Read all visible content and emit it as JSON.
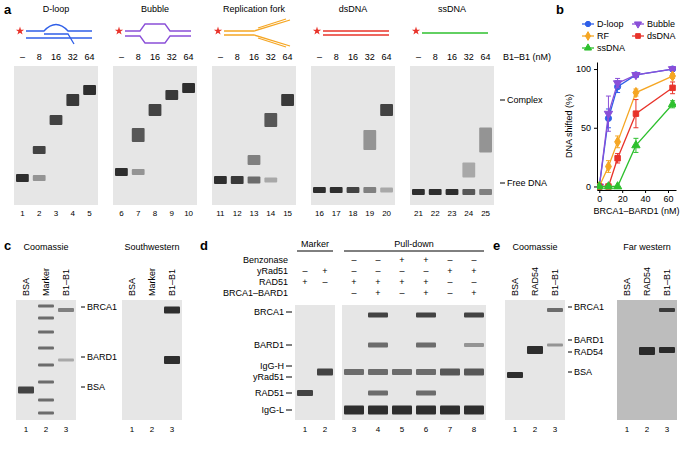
{
  "panels": {
    "a": {
      "letter": "a",
      "gels": [
        {
          "title": "D-loop",
          "lanes": [
            "–",
            "8",
            "16",
            "32",
            "64"
          ],
          "lane_numbers": [
            1,
            2,
            3,
            4,
            5
          ]
        },
        {
          "title": "Bubble",
          "lanes": [
            "–",
            "8",
            "16",
            "32",
            "64"
          ],
          "lane_numbers": [
            6,
            7,
            8,
            9,
            10
          ]
        },
        {
          "title": "Replication fork",
          "lanes": [
            "–",
            "8",
            "16",
            "32",
            "64"
          ],
          "lane_numbers": [
            11,
            12,
            13,
            14,
            15
          ]
        },
        {
          "title": "dsDNA",
          "lanes": [
            "–",
            "8",
            "16",
            "32",
            "64"
          ],
          "lane_numbers": [
            16,
            17,
            18,
            19,
            20
          ]
        },
        {
          "title": "ssDNA",
          "lanes": [
            "–",
            "8",
            "16",
            "32",
            "64"
          ],
          "lane_numbers": [
            21,
            22,
            23,
            24,
            25
          ]
        }
      ],
      "lane_unit": "B1–B1 (nM)",
      "band_labels": [
        "Complex",
        "Free DNA"
      ]
    },
    "b": {
      "letter": "b"
    },
    "c": {
      "letter": "c",
      "lanes": [
        "BSA",
        "Marker",
        "B1–B1"
      ],
      "blots": [
        {
          "title": "Coomassie",
          "lane_numbers": [
            1,
            2,
            3
          ]
        },
        {
          "title": "Southwestern",
          "lane_numbers": [
            1,
            2,
            3
          ]
        }
      ],
      "band_labels": [
        "BRCA1",
        "BARD1",
        "BSA"
      ]
    },
    "d": {
      "letter": "d",
      "groups": [
        {
          "title": "Marker",
          "lane_numbers": [
            1,
            2
          ]
        },
        {
          "title": "Pull-down",
          "lane_numbers": [
            3,
            4,
            5,
            6,
            7,
            8
          ]
        }
      ],
      "rows": [
        {
          "label": "Benzonase",
          "values": [
            null,
            null,
            "–",
            "–",
            "+",
            "+",
            "–",
            "–"
          ]
        },
        {
          "label": "yRad51",
          "values": [
            "–",
            "+",
            "–",
            "–",
            "–",
            "–",
            "+",
            "+"
          ]
        },
        {
          "label": "RAD51",
          "values": [
            "+",
            "–",
            "+",
            "+",
            "+",
            "+",
            "–",
            "–"
          ]
        },
        {
          "label": "BRCA1–BARD1",
          "values": [
            null,
            null,
            "–",
            "+",
            "–",
            "+",
            "–",
            "+"
          ]
        }
      ],
      "band_labels": [
        "BRCA1",
        "BARD1",
        "IgG-H",
        "yRad51",
        "RAD51",
        "IgG-L"
      ]
    },
    "e": {
      "letter": "e",
      "lanes": [
        "BSA",
        "RAD54",
        "B1–B1"
      ],
      "blots": [
        {
          "title": "Coomassie",
          "lane_numbers": [
            1,
            2,
            3
          ]
        },
        {
          "title": "Far western",
          "lane_numbers": [
            1,
            2,
            3
          ]
        }
      ],
      "band_labels": [
        "BRCA1",
        "BARD1",
        "RAD54",
        "BSA"
      ]
    }
  },
  "chart_data": {
    "type": "line",
    "x": [
      0,
      8,
      16,
      32,
      64
    ],
    "xlim": [
      -2,
      67
    ],
    "xticks": [
      0,
      20,
      40,
      60
    ],
    "ylim": [
      -3,
      106
    ],
    "yticks": [
      0,
      50,
      100
    ],
    "x_label": "BRCA1–BARD1 (nM)",
    "y_label": "DNA shifted (%)",
    "legend": "top",
    "grid": false,
    "series": [
      {
        "name": "D-loop",
        "color": "#2f5fe8",
        "marker": "circle",
        "values": [
          0,
          58,
          85,
          95,
          100
        ],
        "errors": [
          0,
          8,
          5,
          2,
          1
        ]
      },
      {
        "name": "Bubble",
        "color": "#8a4fd8",
        "marker": "triangle-down",
        "values": [
          0,
          62,
          88,
          95,
          100
        ],
        "errors": [
          0,
          15,
          4,
          2,
          1
        ]
      },
      {
        "name": "RF",
        "color": "#f5a623",
        "marker": "diamond",
        "values": [
          0,
          17,
          38,
          80,
          94
        ],
        "errors": [
          0,
          5,
          5,
          3,
          2
        ]
      },
      {
        "name": "dsDNA",
        "color": "#e8332a",
        "marker": "square",
        "values": [
          0,
          0,
          24,
          62,
          84
        ],
        "errors": [
          0,
          0,
          4,
          12,
          5
        ]
      },
      {
        "name": "ssDNA",
        "color": "#2ec02e",
        "marker": "triangle-up",
        "values": [
          0,
          0,
          0,
          35,
          70
        ],
        "errors": [
          0,
          0,
          0,
          6,
          3
        ]
      }
    ]
  }
}
